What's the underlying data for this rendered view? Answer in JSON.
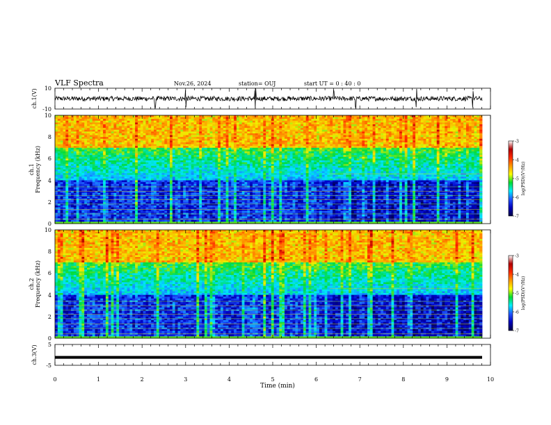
{
  "header": {
    "title": "VLF Spectra",
    "date": "Nov.26, 2024",
    "station": "station= OUJ",
    "start_ut": "start  UT =   0 : 40 : 0"
  },
  "colorbar": {
    "label": "log(PSD)(V²/Hz)",
    "ticks": [
      "-3",
      "-4",
      "-5",
      "-6",
      "-7"
    ],
    "colors": [
      "#ffffff",
      "#b00000",
      "#ff2a00",
      "#ff9900",
      "#ffff00",
      "#00dd33",
      "#00eeff",
      "#2255ff",
      "#0000bb",
      "#000044"
    ]
  },
  "chart_data": [
    {
      "type": "line",
      "panel": "ch1-waveform",
      "ylabel": "ch.1(V)",
      "yticks": [
        "10",
        "-10"
      ],
      "ylim": [
        -10,
        10
      ],
      "xlim": [
        0,
        10
      ],
      "typical_range": [
        -2.5,
        2.5
      ],
      "spikes_x": [
        2.3,
        3.0,
        4.6,
        6.4,
        6.9,
        8.3,
        9.6
      ]
    },
    {
      "type": "heatmap",
      "panel": "ch1-spectrogram",
      "ylabel_line1": "ch.1",
      "ylabel_line2": "Frequency (kHz)",
      "yticks": [
        "0",
        "2",
        "4",
        "6",
        "8",
        "10"
      ],
      "ylim": [
        0,
        10
      ],
      "xlim": [
        0,
        10
      ],
      "value_label": "log(PSD)(V²/Hz)",
      "value_range": [
        -7,
        -3
      ],
      "transition_minute": 6.3
    },
    {
      "type": "heatmap",
      "panel": "ch2-spectrogram",
      "ylabel_line1": "ch.2",
      "ylabel_line2": "Frequency (kHz)",
      "yticks": [
        "0",
        "2",
        "4",
        "6",
        "8",
        "10"
      ],
      "ylim": [
        0,
        10
      ],
      "xlim": [
        0,
        10
      ],
      "value_label": "log(PSD)(V²/Hz)",
      "value_range": [
        -7,
        -3
      ],
      "transition_minute": 6.3
    },
    {
      "type": "line",
      "panel": "ch3-waveform",
      "ylabel": "ch.3(V)",
      "yticks": [
        "5",
        "-5"
      ],
      "ylim": [
        -5,
        5
      ],
      "xlim": [
        0,
        10
      ],
      "constant_value": -1.2,
      "xlabel": "Time (min)",
      "xticks": [
        "0",
        "1",
        "2",
        "3",
        "4",
        "5",
        "6",
        "7",
        "8",
        "9",
        "10"
      ]
    }
  ]
}
